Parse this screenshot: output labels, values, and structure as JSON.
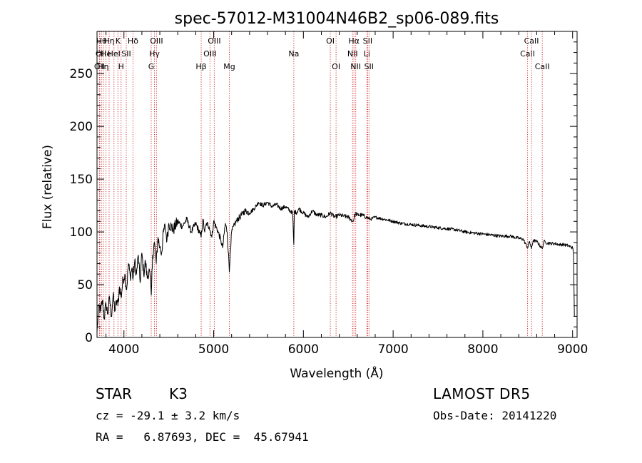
{
  "chart_data": {
    "type": "line",
    "title": "spec-57012-M31004N46B2_sp06-089.fits",
    "xlabel": "Wavelength (Å)",
    "ylabel": "Flux (relative)",
    "xlim": [
      3700,
      9050
    ],
    "ylim": [
      0,
      290
    ],
    "xticks": [
      4000,
      5000,
      6000,
      7000,
      8000,
      9000
    ],
    "yticks": [
      0,
      50,
      100,
      150,
      200,
      250
    ],
    "grid": false,
    "series": [
      {
        "color": "#000000",
        "x": [
          3700,
          3720,
          3740,
          3760,
          3780,
          3800,
          3820,
          3840,
          3860,
          3880,
          3900,
          3920,
          3933,
          3950,
          3968,
          3990,
          4010,
          4030,
          4050,
          4070,
          4090,
          4101,
          4120,
          4140,
          4160,
          4180,
          4200,
          4220,
          4240,
          4260,
          4280,
          4300,
          4305,
          4320,
          4340,
          4360,
          4380,
          4400,
          4420,
          4440,
          4460,
          4480,
          4500,
          4550,
          4600,
          4650,
          4700,
          4750,
          4800,
          4850,
          4861,
          4880,
          4900,
          4920,
          4950,
          4980,
          5000,
          5050,
          5080,
          5100,
          5130,
          5150,
          5170,
          5175,
          5185,
          5200,
          5250,
          5300,
          5350,
          5400,
          5450,
          5500,
          5550,
          5600,
          5650,
          5700,
          5750,
          5800,
          5850,
          5880,
          5893,
          5900,
          5920,
          5950,
          6000,
          6050,
          6100,
          6150,
          6200,
          6250,
          6300,
          6350,
          6400,
          6450,
          6500,
          6550,
          6563,
          6580,
          6600,
          6650,
          6700,
          6750,
          6800,
          6900,
          7000,
          7100,
          7200,
          7300,
          7400,
          7500,
          7600,
          7700,
          7800,
          7900,
          8000,
          8100,
          8200,
          8300,
          8400,
          8450,
          8498,
          8520,
          8542,
          8560,
          8600,
          8662,
          8680,
          8700,
          8750,
          8800,
          8850,
          8900,
          8950,
          9000,
          9010,
          9020
        ],
        "values": [
          5,
          30,
          25,
          35,
          18,
          32,
          22,
          38,
          20,
          40,
          25,
          35,
          30,
          48,
          38,
          55,
          60,
          45,
          70,
          58,
          66,
          55,
          72,
          60,
          78,
          52,
          80,
          60,
          72,
          56,
          65,
          48,
          40,
          78,
          90,
          70,
          95,
          85,
          80,
          100,
          105,
          92,
          108,
          102,
          110,
          105,
          112,
          100,
          108,
          98,
          95,
          112,
          100,
          108,
          105,
          95,
          110,
          100,
          92,
          85,
          108,
          100,
          72,
          62,
          80,
          100,
          110,
          115,
          120,
          118,
          122,
          128,
          125,
          128,
          124,
          126,
          122,
          124,
          120,
          118,
          88,
          120,
          118,
          122,
          118,
          114,
          120,
          116,
          116,
          114,
          118,
          114,
          116,
          115,
          114,
          110,
          112,
          118,
          116,
          116,
          114,
          112,
          114,
          112,
          110,
          108,
          107,
          106,
          105,
          104,
          103,
          102,
          100,
          99,
          98,
          97,
          96,
          96,
          94,
          93,
          85,
          91,
          84,
          92,
          91,
          84,
          91,
          90,
          89,
          89,
          88,
          88,
          87,
          85,
          80,
          20
        ]
      }
    ],
    "line_labels": [
      {
        "x": 3727,
        "label": "OII",
        "row": 2
      },
      {
        "x": 3730,
        "label": "OI",
        "row": 1
      },
      {
        "x": 3750,
        "label": "Hθ",
        "row": 0
      },
      {
        "x": 3770,
        "label": "Hη",
        "row": 2
      },
      {
        "x": 3800,
        "label": "He",
        "row": 1
      },
      {
        "x": 3835,
        "label": "Hη",
        "row": 0
      },
      {
        "x": 3889,
        "label": "HeI",
        "row": 1
      },
      {
        "x": 3933,
        "label": "K",
        "row": 0
      },
      {
        "x": 3968,
        "label": "H",
        "row": 2
      },
      {
        "x": 4026,
        "label": "SII",
        "row": 1
      },
      {
        "x": 4101,
        "label": "Hδ",
        "row": 0
      },
      {
        "x": 4304,
        "label": "G",
        "row": 2
      },
      {
        "x": 4340,
        "label": "Hγ",
        "row": 1
      },
      {
        "x": 4363,
        "label": "OIII",
        "row": 0
      },
      {
        "x": 4861,
        "label": "Hβ",
        "row": 2
      },
      {
        "x": 4959,
        "label": "OIII",
        "row": 1
      },
      {
        "x": 5007,
        "label": "OIII",
        "row": 0
      },
      {
        "x": 5175,
        "label": "Mg",
        "row": 2
      },
      {
        "x": 5893,
        "label": "Na",
        "row": 1
      },
      {
        "x": 6300,
        "label": "OI",
        "row": 0
      },
      {
        "x": 6364,
        "label": "OI",
        "row": 2
      },
      {
        "x": 6548,
        "label": "NII",
        "row": 1
      },
      {
        "x": 6563,
        "label": "Hα",
        "row": 0
      },
      {
        "x": 6583,
        "label": "NII",
        "row": 2
      },
      {
        "x": 6708,
        "label": "Li",
        "row": 1
      },
      {
        "x": 6716,
        "label": "SII",
        "row": 0
      },
      {
        "x": 6731,
        "label": "SII",
        "row": 2
      },
      {
        "x": 8498,
        "label": "CaII",
        "row": 1
      },
      {
        "x": 8542,
        "label": "CaII",
        "row": 0
      },
      {
        "x": 8662,
        "label": "CaII",
        "row": 2
      }
    ],
    "info": {
      "class_label": "STAR",
      "subclass": "K3",
      "redshift": "cz = -29.1 ± 3.2 km/s",
      "coords": "RA =   6.87693, DEC =  45.67941",
      "survey": "LAMOST DR5",
      "obs_date": "Obs-Date: 20141220"
    }
  }
}
